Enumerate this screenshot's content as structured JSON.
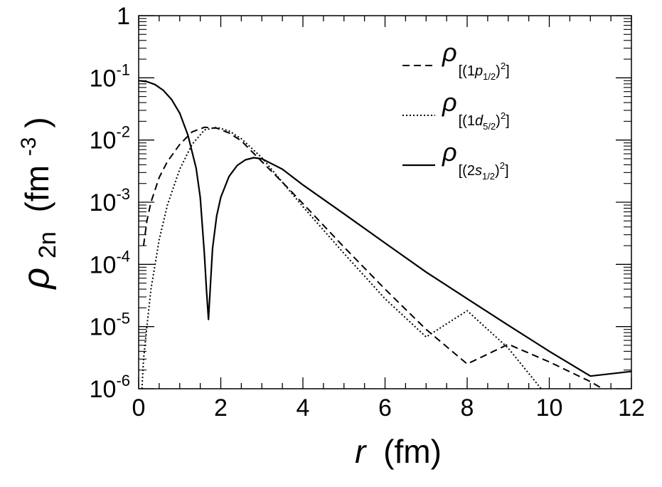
{
  "chart_data": {
    "type": "line",
    "xlabel": {
      "symbol": "r",
      "unit": "(fm)"
    },
    "ylabel": {
      "symbol": "ρ",
      "subscript": "2n",
      "unit_base": "(fm",
      "unit_exp": "-3",
      "unit_close": ")"
    },
    "xlim": [
      0,
      12
    ],
    "ylim": [
      1e-06,
      1
    ],
    "yscale": "log",
    "grid": false,
    "legend_position": "top-right",
    "x_ticks": [
      {
        "value": 0,
        "label": "0"
      },
      {
        "value": 2,
        "label": "2"
      },
      {
        "value": 4,
        "label": "4"
      },
      {
        "value": 6,
        "label": "6"
      },
      {
        "value": 8,
        "label": "8"
      },
      {
        "value": 10,
        "label": "10"
      },
      {
        "value": 12,
        "label": "12"
      }
    ],
    "y_ticks": [
      {
        "value": 1,
        "base": "1",
        "exp": ""
      },
      {
        "value": 0.1,
        "base": "10",
        "exp": "-1"
      },
      {
        "value": 0.01,
        "base": "10",
        "exp": "-2"
      },
      {
        "value": 0.001,
        "base": "10",
        "exp": "-3"
      },
      {
        "value": 0.0001,
        "base": "10",
        "exp": "-4"
      },
      {
        "value": 1e-05,
        "base": "10",
        "exp": "-5"
      },
      {
        "value": 1e-06,
        "base": "10",
        "exp": "-6"
      }
    ],
    "series": [
      {
        "name": "ρ[(1p1/2)²]",
        "legend": {
          "symbol": "ρ",
          "open": "[(1",
          "orb": "p",
          "sub": "1/2",
          "close": ")",
          "sup": "2",
          "end": "]"
        },
        "line_style": "dashed",
        "x": [
          0.12,
          0.2,
          0.3,
          0.5,
          0.7,
          1.0,
          1.3,
          1.6,
          1.9,
          2.2,
          2.5,
          3.0,
          3.5,
          4.0,
          5.0,
          6.0,
          7.0,
          8.0,
          9.0,
          10.0,
          11.0,
          11.3
        ],
        "y": [
          0.0002,
          0.0005,
          0.001,
          0.0025,
          0.0045,
          0.0085,
          0.0135,
          0.016,
          0.0155,
          0.013,
          0.0097,
          0.0045,
          0.0021,
          0.00095,
          0.00019,
          4e-05,
          9e-06,
          2.5e-06,
          5.2e-06,
          2.7e-06,
          1.3e-06,
          1e-06
        ]
      },
      {
        "name": "ρ[(1d5/2)²]",
        "legend": {
          "symbol": "ρ",
          "open": "[(1",
          "orb": "d",
          "sub": "5/2",
          "close": ")",
          "sup": "2",
          "end": "]"
        },
        "line_style": "dotted",
        "x": [
          0.08,
          0.12,
          0.2,
          0.3,
          0.5,
          0.7,
          1.0,
          1.3,
          1.6,
          1.9,
          2.2,
          2.5,
          3.0,
          3.5,
          4.0,
          5.0,
          6.0,
          7.0,
          8.0,
          9.0,
          9.8
        ],
        "y": [
          1e-06,
          3e-06,
          1e-05,
          4e-05,
          0.00025,
          0.0009,
          0.0034,
          0.0085,
          0.0145,
          0.016,
          0.014,
          0.0105,
          0.0052,
          0.0021,
          0.00085,
          0.00015,
          2.8e-05,
          6.8e-06,
          1.8e-05,
          4.5e-06,
          1e-06
        ]
      },
      {
        "name": "ρ[(2s1/2)²]",
        "legend": {
          "symbol": "ρ",
          "open": "[(2",
          "orb": "s",
          "sub": "1/2",
          "close": ")",
          "sup": "2",
          "end": "]"
        },
        "line_style": "solid",
        "x": [
          0.0,
          0.2,
          0.4,
          0.6,
          0.8,
          1.0,
          1.2,
          1.4,
          1.5,
          1.6,
          1.65,
          1.7,
          1.75,
          1.8,
          1.9,
          2.0,
          2.2,
          2.4,
          2.6,
          2.8,
          3.0,
          3.5,
          4.0,
          5.0,
          6.0,
          7.0,
          8.0,
          9.0,
          10.0,
          11.0,
          12.0
        ],
        "y": [
          0.09,
          0.087,
          0.078,
          0.063,
          0.045,
          0.027,
          0.012,
          0.0035,
          0.0012,
          0.00015,
          4e-05,
          1.3e-05,
          5e-05,
          0.00018,
          0.0006,
          0.0012,
          0.0026,
          0.0039,
          0.0048,
          0.0052,
          0.005,
          0.0034,
          0.0019,
          0.00065,
          0.00022,
          7.5e-05,
          2.8e-05,
          1.05e-05,
          4e-06,
          1.6e-06,
          1.9e-06
        ]
      }
    ]
  }
}
